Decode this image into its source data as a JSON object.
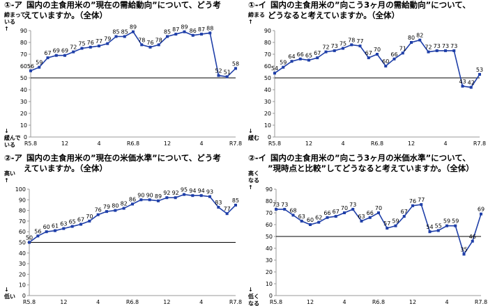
{
  "chart_data": [
    {
      "type": "line",
      "panel_no": "①-ア",
      "title": "国内の主食用米の”現在の需給動向”について、どう考",
      "title2": "えていますか。（全体）",
      "ylabel_top": "締まって いる ↑",
      "ylabel_bottom": "↓ 緩んで いる",
      "ylim": [
        0,
        90
      ],
      "yticks": [
        0,
        10,
        20,
        30,
        40,
        50,
        60,
        70,
        80,
        90
      ],
      "xtick_labels": [
        "R5.8",
        "12",
        "4",
        "R6.8",
        "12",
        "4",
        "R7.8"
      ],
      "baseline": 50,
      "values": [
        56,
        59,
        67,
        69,
        69,
        72,
        75,
        76,
        77,
        79,
        85,
        85,
        89,
        78,
        76,
        78,
        85,
        87,
        89,
        86,
        87,
        88,
        52,
        51,
        58
      ]
    },
    {
      "type": "line",
      "panel_no": "①-イ",
      "title": "国内の主食用米の”向こう3ヶ月の需給動向”について、",
      "title2": "どうなると考えていますか。（全体）",
      "ylabel_top": "締まる ↑",
      "ylabel_bottom": "↓ 緩む",
      "ylim": [
        0,
        90
      ],
      "yticks": [
        0,
        10,
        20,
        30,
        40,
        50,
        60,
        70,
        80,
        90
      ],
      "xtick_labels": [
        "R5.8",
        "12",
        "4",
        "R6.8",
        "12",
        "4",
        "R7.8"
      ],
      "baseline": 50,
      "values": [
        54,
        59,
        64,
        66,
        65,
        67,
        72,
        73,
        75,
        78,
        77,
        67,
        70,
        60,
        66,
        71,
        80,
        82,
        72,
        73,
        73,
        73,
        43,
        42,
        53
      ]
    },
    {
      "type": "line",
      "panel_no": "②-ア",
      "title": "国内の主食用米の”現在の米価水準”について、どう考",
      "title2": "えていますか。（全体）",
      "ylabel_top": "高い ↑",
      "ylabel_bottom": "↓ 低い",
      "ylim": [
        0,
        100
      ],
      "yticks": [
        0,
        10,
        20,
        30,
        40,
        50,
        60,
        70,
        80,
        90,
        100
      ],
      "xtick_labels": [
        "R5.8",
        "12",
        "4",
        "R6.8",
        "12",
        "4",
        "R7.8"
      ],
      "baseline": 50,
      "values": [
        50,
        56,
        60,
        61,
        63,
        65,
        67,
        70,
        76,
        79,
        80,
        82,
        86,
        90,
        90,
        89,
        92,
        92,
        95,
        94,
        94,
        93,
        83,
        77,
        85
      ]
    },
    {
      "type": "line",
      "panel_no": "②-イ",
      "title": "国内の主食用米の”向こう3ヶ月の米価水準”について、",
      "title2": "”現時点と比較”してどうなると考えていますか。（全体）",
      "ylabel_top": "高く なる ↑",
      "ylabel_bottom": "↓ 低く なる",
      "ylim": [
        0,
        90
      ],
      "yticks": [
        0,
        10,
        20,
        30,
        40,
        50,
        60,
        70,
        80,
        90
      ],
      "xtick_labels": [
        "R5.8",
        "12",
        "4",
        "R6.8",
        "12",
        "4",
        "R7.8"
      ],
      "baseline": 50,
      "values": [
        73,
        73,
        68,
        63,
        60,
        62,
        66,
        67,
        70,
        73,
        63,
        66,
        70,
        57,
        59,
        67,
        76,
        77,
        54,
        55,
        59,
        59,
        35,
        46,
        69
      ]
    }
  ]
}
